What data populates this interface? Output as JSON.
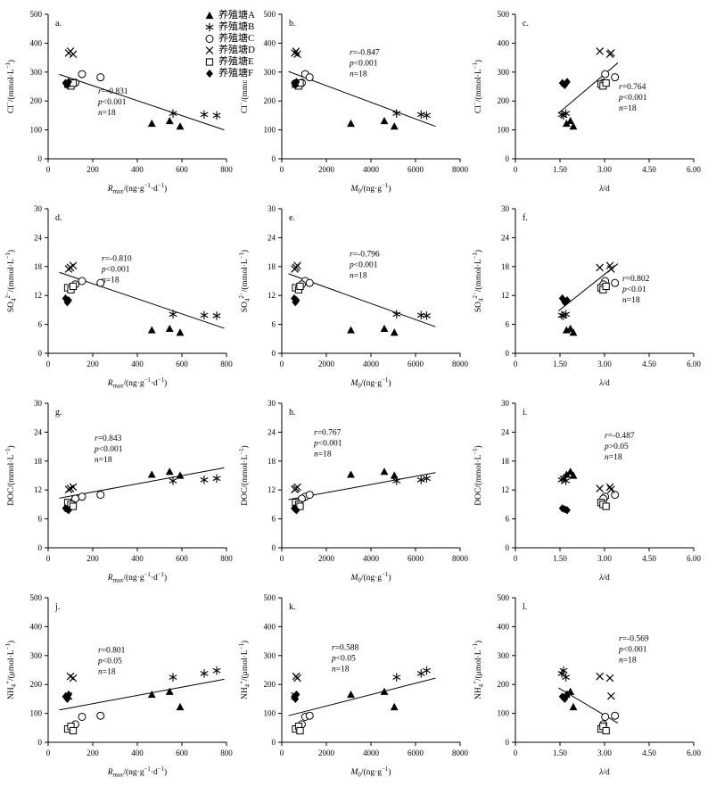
{
  "figure": {
    "background": "#ffffff",
    "ink_color": "#000000",
    "description": "4x3 grid of scatter plots with regression lines, panels a-l"
  },
  "legend": {
    "items": [
      {
        "label": "养殖塘A",
        "marker": "triangle-filled"
      },
      {
        "label": "养殖塘B",
        "marker": "star6"
      },
      {
        "label": "养殖塘C",
        "marker": "circle-open"
      },
      {
        "label": "养殖塘D",
        "marker": "x-cross"
      },
      {
        "label": "养殖塘E",
        "marker": "square-open"
      },
      {
        "label": "养殖塘F",
        "marker": "diamond-filled"
      }
    ]
  },
  "chart_data": {
    "type": "scatter",
    "ponds": [
      {
        "name": "养殖塘A",
        "marker": "triangle-filled",
        "samples": [
          {
            "Rmax": 465,
            "M0": 3100,
            "lam": 1.72,
            "Cl": 122,
            "SO4": 4.8,
            "DOC": 15.2,
            "NH4": 165
          },
          {
            "Rmax": 545,
            "M0": 4600,
            "lam": 1.85,
            "Cl": 131,
            "SO4": 5.1,
            "DOC": 15.8,
            "NH4": 175
          },
          {
            "Rmax": 592,
            "M0": 5050,
            "lam": 1.95,
            "Cl": 112,
            "SO4": 4.3,
            "DOC": 15.0,
            "NH4": 122
          }
        ]
      },
      {
        "name": "养殖塘B",
        "marker": "star6",
        "samples": [
          {
            "Rmax": 700,
            "M0": 6250,
            "lam": 1.56,
            "Cl": 153,
            "SO4": 7.9,
            "DOC": 14.1,
            "NH4": 238
          },
          {
            "Rmax": 756,
            "M0": 6500,
            "lam": 1.62,
            "Cl": 150,
            "SO4": 7.8,
            "DOC": 14.4,
            "NH4": 248
          },
          {
            "Rmax": 560,
            "M0": 5150,
            "lam": 1.7,
            "Cl": 157,
            "SO4": 8.1,
            "DOC": 13.9,
            "NH4": 225
          }
        ]
      },
      {
        "name": "养殖塘C",
        "marker": "circle-open",
        "samples": [
          {
            "Rmax": 152,
            "M0": 1050,
            "lam": 3.02,
            "Cl": 293,
            "SO4": 15.0,
            "DOC": 10.6,
            "NH4": 88
          },
          {
            "Rmax": 235,
            "M0": 1250,
            "lam": 3.35,
            "Cl": 282,
            "SO4": 14.6,
            "DOC": 11.0,
            "NH4": 92
          },
          {
            "Rmax": 122,
            "M0": 900,
            "lam": 2.96,
            "Cl": 263,
            "SO4": 14.3,
            "DOC": 10.2,
            "NH4": 62
          }
        ]
      },
      {
        "name": "养殖塘D",
        "marker": "x-cross",
        "samples": [
          {
            "Rmax": 100,
            "M0": 640,
            "lam": 2.84,
            "Cl": 372,
            "SO4": 17.8,
            "DOC": 12.3,
            "NH4": 228
          },
          {
            "Rmax": 112,
            "M0": 700,
            "lam": 3.18,
            "Cl": 362,
            "SO4": 18.2,
            "DOC": 12.6,
            "NH4": 222
          },
          {
            "Rmax": 92,
            "M0": 580,
            "lam": 3.22,
            "Cl": 366,
            "SO4": 17.5,
            "DOC": 12.1,
            "NH4": 160
          }
        ]
      },
      {
        "name": "养殖塘E",
        "marker": "square-open",
        "samples": [
          {
            "Rmax": 88,
            "M0": 620,
            "lam": 2.88,
            "Cl": 258,
            "SO4": 13.6,
            "DOC": 9.4,
            "NH4": 46
          },
          {
            "Rmax": 102,
            "M0": 760,
            "lam": 2.95,
            "Cl": 252,
            "SO4": 13.2,
            "DOC": 9.0,
            "NH4": 55
          },
          {
            "Rmax": 112,
            "M0": 820,
            "lam": 3.05,
            "Cl": 262,
            "SO4": 13.9,
            "DOC": 8.6,
            "NH4": 40
          }
        ]
      },
      {
        "name": "养殖塘F",
        "marker": "diamond-filled",
        "samples": [
          {
            "Rmax": 78,
            "M0": 560,
            "lam": 1.58,
            "Cl": 262,
            "SO4": 11.4,
            "DOC": 8.2,
            "NH4": 158
          },
          {
            "Rmax": 92,
            "M0": 660,
            "lam": 1.74,
            "Cl": 266,
            "SO4": 11.0,
            "DOC": 7.8,
            "NH4": 165
          },
          {
            "Rmax": 86,
            "M0": 610,
            "lam": 1.66,
            "Cl": 255,
            "SO4": 10.6,
            "DOC": 8.0,
            "NH4": 150
          }
        ]
      }
    ],
    "xaxes": [
      {
        "key": "Rmax",
        "label": "*R*_{max}/(ng·g^{−1}·d^{−1})",
        "lim": [
          0,
          800
        ],
        "ticks": [
          "0",
          "200",
          "400",
          "600",
          "800"
        ]
      },
      {
        "key": "M0",
        "label": "*M*_{0}/(ng·g^{−1})",
        "lim": [
          0,
          8000
        ],
        "ticks": [
          "0",
          "2000",
          "4000",
          "6000",
          "8000"
        ]
      },
      {
        "key": "lam",
        "label": "*λ*/d",
        "lim": [
          0,
          6
        ],
        "ticks": [
          "0",
          "1.50",
          "3.00",
          "4.50",
          "6.00"
        ]
      }
    ],
    "yaxes": [
      {
        "key": "Cl",
        "label": "Cl^{−}/(mmol·L^{−1})",
        "lim": [
          0,
          500
        ],
        "ticks": [
          "0",
          "100",
          "200",
          "300",
          "400",
          "500"
        ]
      },
      {
        "key": "SO4",
        "label": "SO_{4}^{2−}/(mmol·L^{−1})",
        "lim": [
          0,
          30
        ],
        "ticks": [
          "0",
          "6",
          "12",
          "18",
          "24",
          "30"
        ]
      },
      {
        "key": "DOC",
        "label": "DOC/(mmol·L^{−1})",
        "lim": [
          0,
          30
        ],
        "ticks": [
          "0",
          "6",
          "12",
          "18",
          "24",
          "30"
        ]
      },
      {
        "key": "NH4",
        "label": "NH_{4}^{+}/(μmol·L^{−1})",
        "lim": [
          0,
          500
        ],
        "ticks": [
          "0",
          "100",
          "200",
          "300",
          "400",
          "500"
        ]
      }
    ],
    "subplots": [
      {
        "panel": "a.",
        "col": 0,
        "row": 0,
        "ann": [
          [
            "r",
            "=-0.831"
          ],
          [
            "p",
            "<0.001"
          ],
          [
            "n",
            "=18"
          ]
        ],
        "ann_pos": [
          0.28,
          0.55
        ],
        "line": [
          [
            50,
            292
          ],
          [
            790,
            100
          ]
        ]
      },
      {
        "panel": "b.",
        "col": 1,
        "row": 0,
        "ann": [
          [
            "r",
            "=-0.847"
          ],
          [
            "p",
            "<0.001"
          ],
          [
            "n",
            "=18"
          ]
        ],
        "ann_pos": [
          0.38,
          0.28
        ],
        "line": [
          [
            300,
            302
          ],
          [
            6900,
            112
          ]
        ]
      },
      {
        "panel": "c.",
        "col": 2,
        "row": 0,
        "ann": [
          [
            "r",
            "=0.764"
          ],
          [
            "p",
            "<0.001"
          ],
          [
            "n",
            "=18"
          ]
        ],
        "ann_pos": [
          0.58,
          0.52
        ],
        "line": [
          [
            1.45,
            158
          ],
          [
            3.45,
            332
          ]
        ]
      },
      {
        "panel": "d.",
        "col": 0,
        "row": 1,
        "ann": [
          [
            "r",
            "=-0.810"
          ],
          [
            "p",
            "<0.001"
          ],
          [
            "n",
            "=18"
          ]
        ],
        "ann_pos": [
          0.3,
          0.36
        ],
        "line": [
          [
            50,
            16.8
          ],
          [
            790,
            5.2
          ]
        ]
      },
      {
        "panel": "e.",
        "col": 1,
        "row": 1,
        "ann": [
          [
            "r",
            "=-0.796"
          ],
          [
            "p",
            "<0.001"
          ],
          [
            "n",
            "=18"
          ]
        ],
        "ann_pos": [
          0.38,
          0.33
        ],
        "line": [
          [
            300,
            16.5
          ],
          [
            6900,
            5.5
          ]
        ]
      },
      {
        "panel": "f.",
        "col": 2,
        "row": 1,
        "ann": [
          [
            "r",
            "=0.802"
          ],
          [
            "p",
            "<0.01"
          ],
          [
            "n",
            "=18"
          ]
        ],
        "ann_pos": [
          0.6,
          0.5
        ],
        "line": [
          [
            1.45,
            8.8
          ],
          [
            3.45,
            18.6
          ]
        ]
      },
      {
        "panel": "g.",
        "col": 0,
        "row": 2,
        "ann": [
          [
            "r",
            "=0.843"
          ],
          [
            "p",
            "<0.001"
          ],
          [
            "n",
            "=18"
          ]
        ],
        "ann_pos": [
          0.26,
          0.26
        ],
        "line": [
          [
            50,
            10.3
          ],
          [
            790,
            16.6
          ]
        ]
      },
      {
        "panel": "h.",
        "col": 1,
        "row": 2,
        "ann": [
          [
            "r",
            "=0.767"
          ],
          [
            "p",
            "<0.001"
          ],
          [
            "n",
            "=18"
          ]
        ],
        "ann_pos": [
          0.18,
          0.22
        ],
        "line": [
          [
            300,
            10.0
          ],
          [
            6900,
            15.6
          ]
        ]
      },
      {
        "panel": "i.",
        "col": 2,
        "row": 2,
        "ann": [
          [
            "r",
            "=-0.487"
          ],
          [
            "p",
            ">0.05"
          ],
          [
            "n",
            "=18"
          ]
        ],
        "ann_pos": [
          0.5,
          0.24
        ],
        "line": null
      },
      {
        "panel": "j.",
        "col": 0,
        "row": 3,
        "ann": [
          [
            "r",
            "=0.801"
          ],
          [
            "p",
            "<0.05"
          ],
          [
            "n",
            "=18"
          ]
        ],
        "ann_pos": [
          0.28,
          0.38
        ],
        "line": [
          [
            50,
            112
          ],
          [
            790,
            218
          ]
        ]
      },
      {
        "panel": "k.",
        "col": 1,
        "row": 3,
        "ann": [
          [
            "r",
            "=0.588"
          ],
          [
            "p",
            "<0.05"
          ],
          [
            "n",
            "=18"
          ]
        ],
        "ann_pos": [
          0.28,
          0.36
        ],
        "line": [
          [
            300,
            92
          ],
          [
            6900,
            222
          ]
        ]
      },
      {
        "panel": "l.",
        "col": 2,
        "row": 3,
        "ann": [
          [
            "r",
            "=-0.569"
          ],
          [
            "p",
            "<0.001"
          ],
          [
            "n",
            "=18"
          ]
        ],
        "ann_pos": [
          0.58,
          0.3
        ],
        "line": [
          [
            1.45,
            188
          ],
          [
            3.45,
            66
          ]
        ]
      }
    ]
  }
}
